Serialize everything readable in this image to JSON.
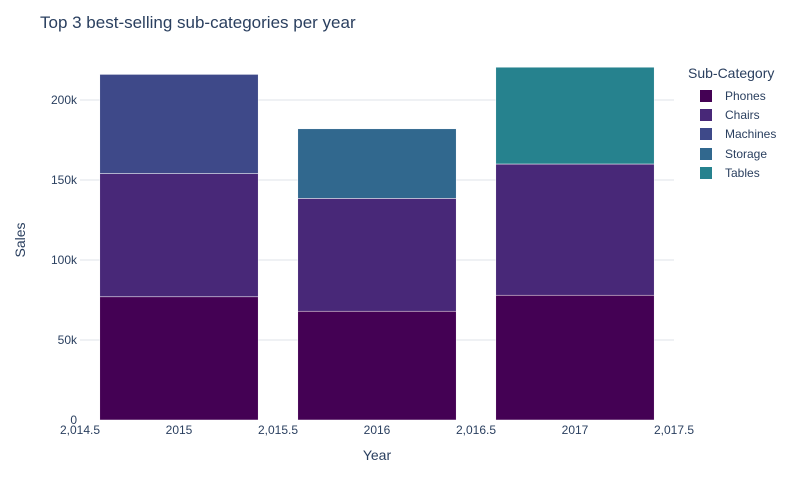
{
  "chart_data": {
    "type": "bar",
    "barmode": "stack",
    "title": "Top 3 best-selling sub-categories per year",
    "xlabel": "Year",
    "ylabel": "Sales",
    "legend_title": "Sub-Category",
    "legend_position": "right",
    "xlim": [
      2014.5,
      2017.5
    ],
    "ylim": [
      0,
      225000
    ],
    "x_ticks": [
      2014.5,
      2015,
      2015.5,
      2016,
      2016.5,
      2017,
      2017.5
    ],
    "x_tick_labels": [
      "2,014.5",
      "2015",
      "2,015.5",
      "2016",
      "2,016.5",
      "2017",
      "2,017.5"
    ],
    "y_ticks": [
      0,
      50000,
      100000,
      150000,
      200000
    ],
    "y_tick_labels": [
      "0",
      "50k",
      "100k",
      "150k",
      "200k"
    ],
    "grid": true,
    "colors": {
      "Phones": "#440154",
      "Chairs": "#482878",
      "Machines": "#3e4989",
      "Storage": "#31688e",
      "Tables": "#26828e",
      "grid": "#dfe3ea",
      "text": "#2a3f5f"
    },
    "series_order": [
      "Phones",
      "Chairs",
      "Machines",
      "Storage",
      "Tables"
    ],
    "bars": [
      {
        "x": 2015,
        "segments": [
          {
            "series": "Phones",
            "value": 77000
          },
          {
            "series": "Chairs",
            "value": 77000
          },
          {
            "series": "Machines",
            "value": 62000
          }
        ]
      },
      {
        "x": 2016,
        "segments": [
          {
            "series": "Phones",
            "value": 68000
          },
          {
            "series": "Chairs",
            "value": 70500
          },
          {
            "series": "Storage",
            "value": 43500
          }
        ]
      },
      {
        "x": 2017,
        "segments": [
          {
            "series": "Phones",
            "value": 78000
          },
          {
            "series": "Chairs",
            "value": 82000
          },
          {
            "series": "Tables",
            "value": 60500
          }
        ]
      }
    ]
  }
}
